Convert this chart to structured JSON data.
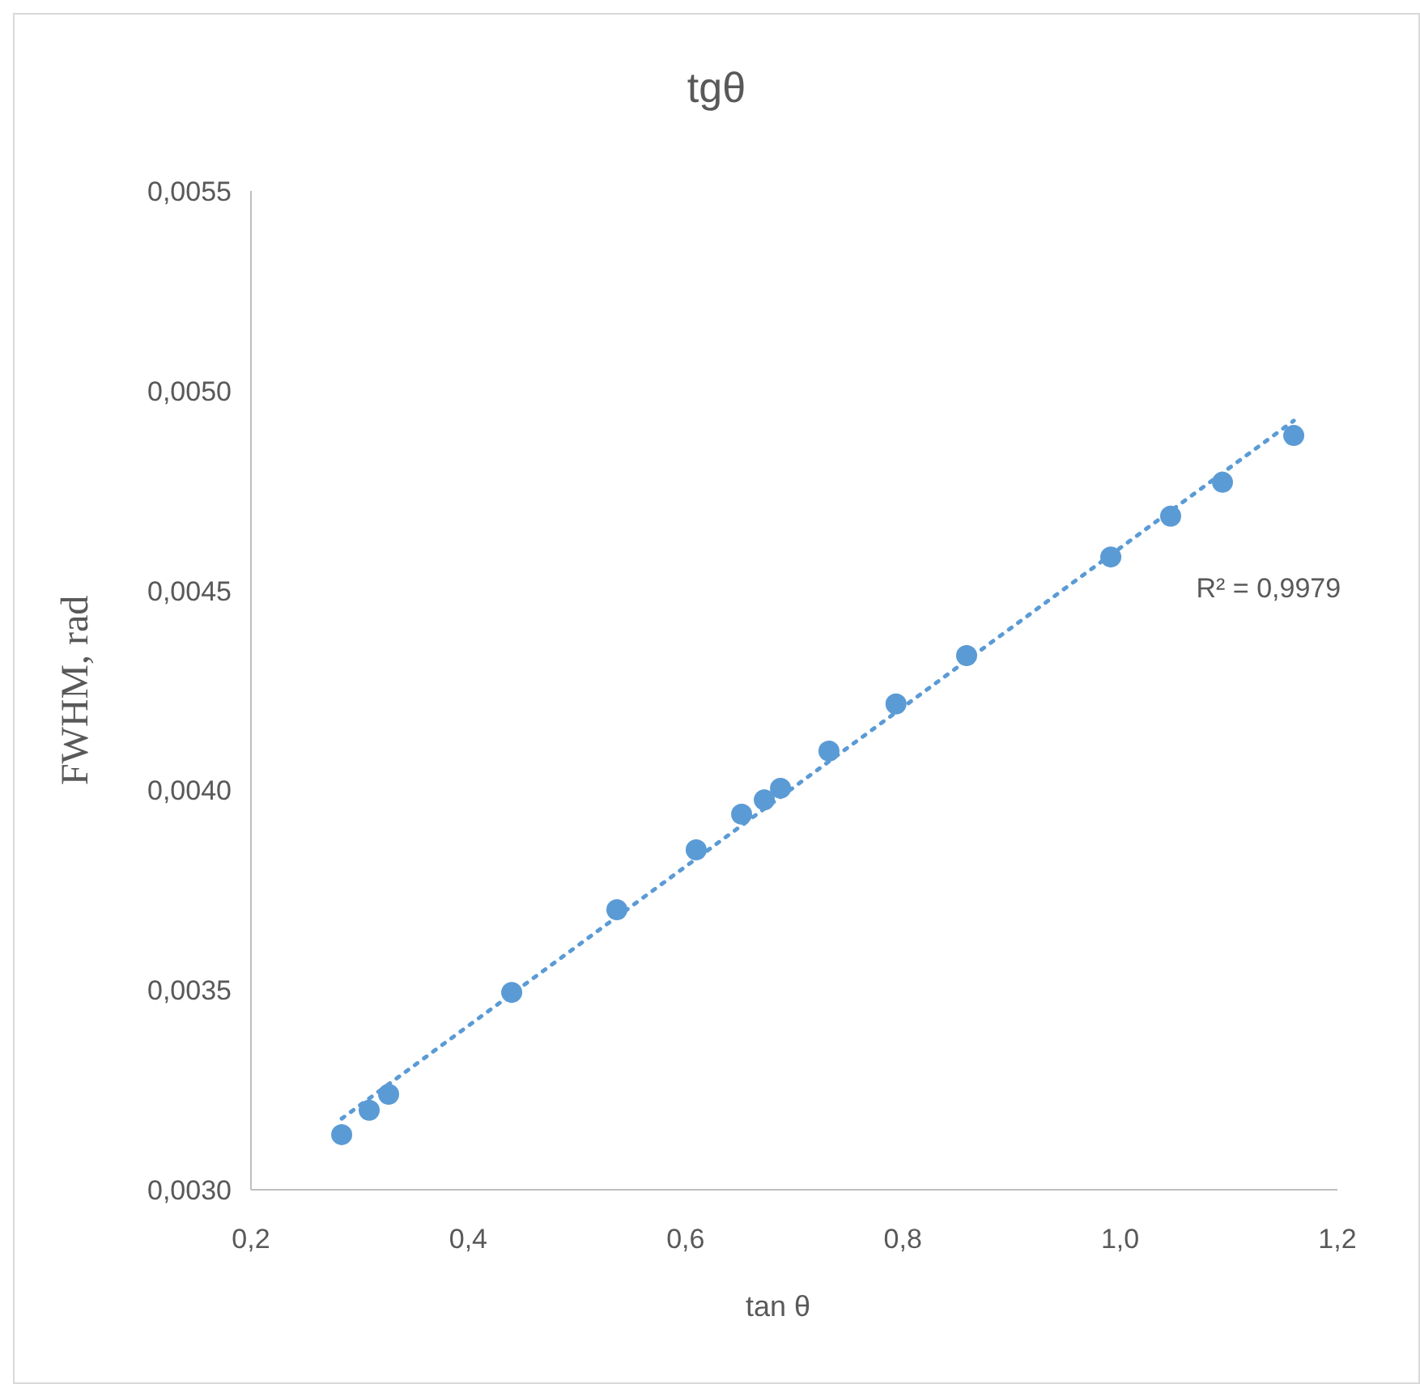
{
  "chart_data": {
    "type": "scatter",
    "title": "tgθ",
    "xlabel": "tan θ",
    "ylabel": "FWHM, rad",
    "xlim": [
      0.2,
      1.2
    ],
    "ylim": [
      0.003,
      0.0055
    ],
    "xticks": [
      {
        "value": 0.2,
        "label": "0,2"
      },
      {
        "value": 0.4,
        "label": "0,4"
      },
      {
        "value": 0.6,
        "label": "0,6"
      },
      {
        "value": 0.8,
        "label": "0,8"
      },
      {
        "value": 1.0,
        "label": "1,0"
      },
      {
        "value": 1.2,
        "label": "1,2"
      }
    ],
    "yticks": [
      {
        "value": 0.003,
        "label": "0,0030"
      },
      {
        "value": 0.0035,
        "label": "0,0035"
      },
      {
        "value": 0.004,
        "label": "0,0040"
      },
      {
        "value": 0.0045,
        "label": "0,0045"
      },
      {
        "value": 0.005,
        "label": "0,0050"
      },
      {
        "value": 0.0055,
        "label": "0,0055"
      }
    ],
    "grid": false,
    "marker": "circle",
    "series": [
      {
        "color": "#5b9bd5",
        "x": [
          0.2835,
          0.3088,
          0.3267,
          0.44,
          0.5368,
          0.6098,
          0.6516,
          0.6725,
          0.6874,
          0.732,
          0.7937,
          0.8587,
          0.9914,
          1.0465,
          1.0942,
          1.1598
        ],
        "values": [
          0.003138,
          0.003199,
          0.003239,
          0.003494,
          0.003701,
          0.003851,
          0.00394,
          0.003976,
          0.004005,
          0.004098,
          0.004216,
          0.004337,
          0.004584,
          0.004686,
          0.004771,
          0.004888
        ]
      },
      {
        "type": "line",
        "color": "#5b9bd5",
        "line_style": "dotted",
        "marker": "none",
        "x": [
          0.2835,
          1.1598
        ],
        "values": [
          0.003178,
          0.004925
        ]
      }
    ],
    "annotations": [
      "R² = 0,9979"
    ]
  }
}
